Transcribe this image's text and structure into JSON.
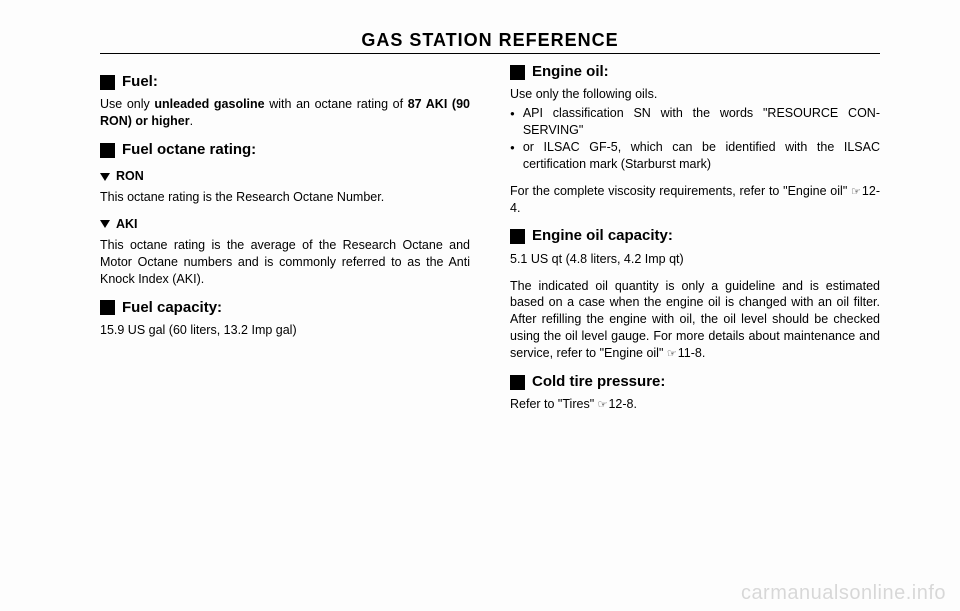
{
  "title": "GAS STATION REFERENCE",
  "watermark": "carmanualsonline.info",
  "left": {
    "fuel": {
      "heading": "Fuel:",
      "text_pre": "Use only ",
      "text_bold1": "unleaded gasoline",
      "text_mid": " with an octane rating of ",
      "text_bold2": "87 AKI (90 RON) or higher",
      "text_post": "."
    },
    "octane": {
      "heading": "Fuel octane rating:",
      "ron_label": "RON",
      "ron_text": "This octane rating is the Research Octane Number.",
      "aki_label": "AKI",
      "aki_text": "This octane rating is the average of the Research Octane and Motor Octane numbers and is commonly referred to as the Anti Knock Index (AKI)."
    },
    "capacity": {
      "heading": "Fuel capacity:",
      "text": "15.9 US gal (60 liters, 13.2 Imp gal)"
    }
  },
  "right": {
    "engine_oil": {
      "heading": "Engine oil:",
      "intro": "Use only the following oils.",
      "b1": "API classification SN with the words \"RESOURCE CON-SERVING\"",
      "b2": "or ILSAC GF-5, which can be identified with the ILSAC certification mark (Starburst mark)",
      "footer_a": "For the complete viscosity requirements, refer to \"Engine oil\" ",
      "footer_ref": "12-4."
    },
    "oil_capacity": {
      "heading": "Engine oil capacity:",
      "value": "5.1 US qt (4.8 liters, 4.2 Imp qt)",
      "para_a": "The indicated oil quantity is only a guideline and is estimated based on a case when the engine oil is changed with an oil filter. After refilling the engine with oil, the oil level should be checked using the oil level gauge. For more details about maintenance and service, refer to \"Engine oil\" ",
      "para_ref": "11-8."
    },
    "tire": {
      "heading": "Cold tire pressure:",
      "text_a": "Refer to \"Tires\" ",
      "text_ref": "12-8."
    }
  }
}
